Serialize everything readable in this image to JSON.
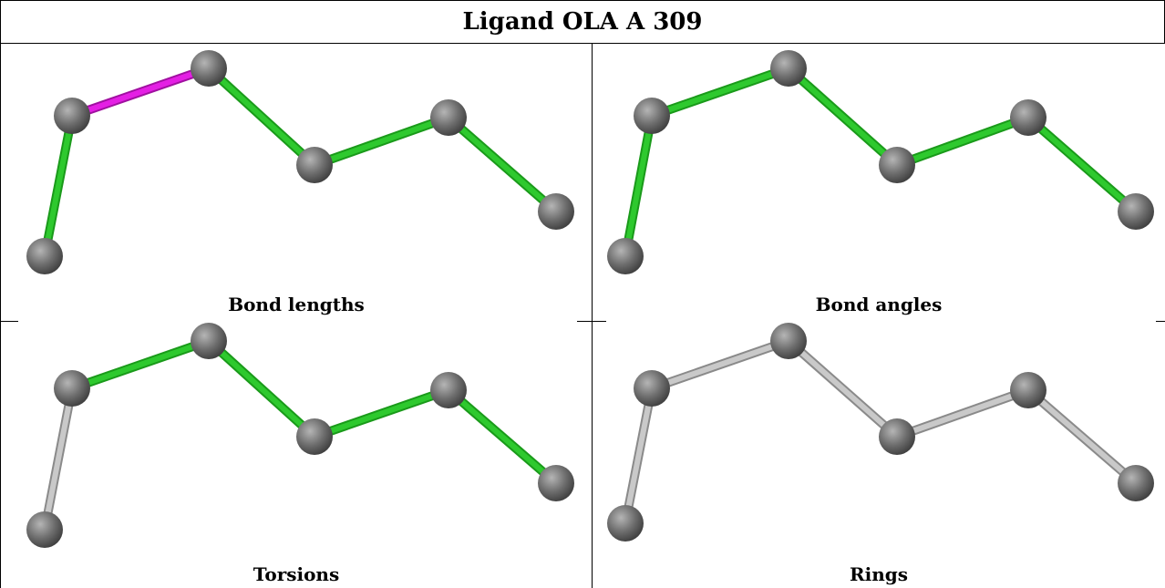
{
  "title": "Ligand OLA A 309",
  "colors": {
    "ok": "#2ec92e",
    "outlier": "#e41fe4",
    "unassessed": "#c9c9c9",
    "atom": "#6e6e6e"
  },
  "panels": [
    {
      "caption": "Bond lengths",
      "bond_status": [
        "ok",
        "outlier",
        "ok",
        "ok",
        "ok",
        "ok"
      ]
    },
    {
      "caption": "Bond angles",
      "bond_status": [
        "ok",
        "ok",
        "ok",
        "ok",
        "ok",
        "ok"
      ]
    },
    {
      "caption": "Torsions",
      "bond_status": [
        "unassessed",
        "ok",
        "ok",
        "ok",
        "ok",
        "unassessed"
      ]
    },
    {
      "caption": "Rings",
      "bond_status": [
        "unassessed",
        "unassessed",
        "unassessed",
        "unassessed",
        "unassessed",
        "unassessed"
      ]
    }
  ]
}
